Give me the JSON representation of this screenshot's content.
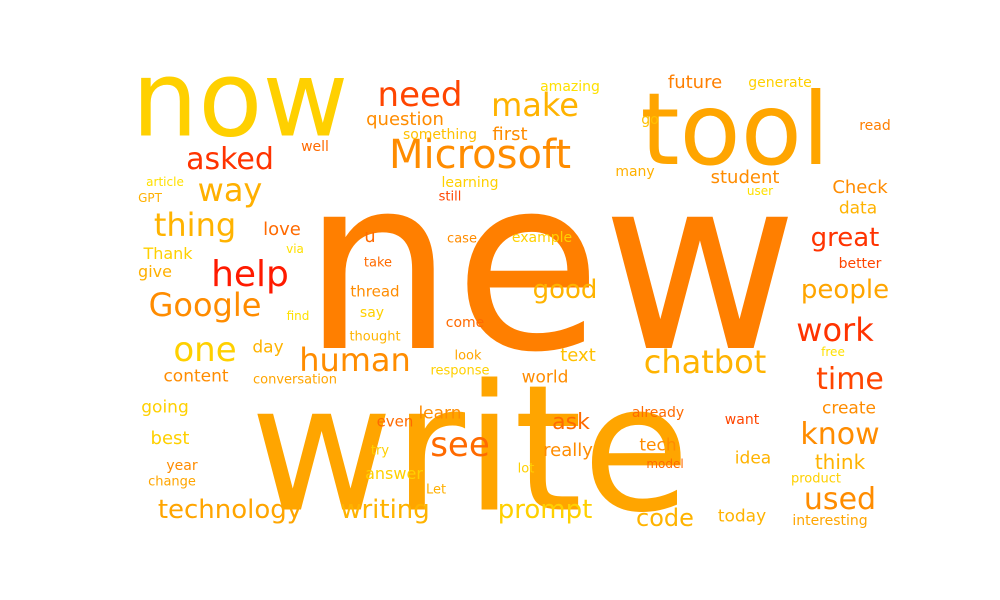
{
  "words": [
    {
      "text": "new",
      "color": "#FF7F00"
    },
    {
      "text": "write",
      "color": "#FFA500"
    },
    {
      "text": "now",
      "color": "#FFD000"
    },
    {
      "text": "tool",
      "color": "#FFA500"
    },
    {
      "text": "Microsoft",
      "color": "#FF8C00"
    },
    {
      "text": "need",
      "color": "#FF4500"
    },
    {
      "text": "make",
      "color": "#FFB300"
    },
    {
      "text": "asked",
      "color": "#FF3300"
    },
    {
      "text": "way",
      "color": "#FFB000"
    },
    {
      "text": "thing",
      "color": "#FFB300"
    },
    {
      "text": "help",
      "color": "#FF1A00"
    },
    {
      "text": "Google",
      "color": "#FF8C00"
    },
    {
      "text": "one",
      "color": "#FFD000"
    },
    {
      "text": "human",
      "color": "#FF8C00"
    },
    {
      "text": "see",
      "color": "#FF6A00"
    },
    {
      "text": "chatbot",
      "color": "#FFB300"
    },
    {
      "text": "work",
      "color": "#FF3300"
    },
    {
      "text": "time",
      "color": "#FF4500"
    },
    {
      "text": "know",
      "color": "#FF8C00"
    },
    {
      "text": "used",
      "color": "#FF8C00"
    },
    {
      "text": "technology",
      "color": "#FFA500"
    },
    {
      "text": "writing",
      "color": "#FFB300"
    },
    {
      "text": "prompt",
      "color": "#FFD000"
    },
    {
      "text": "code",
      "color": "#FFB300"
    },
    {
      "text": "people",
      "color": "#FFA500"
    },
    {
      "text": "great",
      "color": "#FF3300"
    },
    {
      "text": "good",
      "color": "#FFB300"
    },
    {
      "text": "question",
      "color": "#FF8C00"
    },
    {
      "text": "first",
      "color": "#FF8C00"
    },
    {
      "text": "future",
      "color": "#FF7F00"
    },
    {
      "text": "generate",
      "color": "#FFD000"
    },
    {
      "text": "amazing",
      "color": "#FFE000"
    },
    {
      "text": "something",
      "color": "#FFC000"
    },
    {
      "text": "go",
      "color": "#FFC000"
    },
    {
      "text": "read",
      "color": "#FF7F00"
    },
    {
      "text": "well",
      "color": "#FF6A00"
    },
    {
      "text": "article",
      "color": "#FFE000"
    },
    {
      "text": "GPT",
      "color": "#FFB000"
    },
    {
      "text": "learning",
      "color": "#FFD000"
    },
    {
      "text": "still",
      "color": "#FF4500"
    },
    {
      "text": "many",
      "color": "#FFB000"
    },
    {
      "text": "student",
      "color": "#FF8C00"
    },
    {
      "text": "user",
      "color": "#FFE000"
    },
    {
      "text": "Check",
      "color": "#FF8C00"
    },
    {
      "text": "data",
      "color": "#FFB300"
    },
    {
      "text": "love",
      "color": "#FF6A00"
    },
    {
      "text": "u",
      "color": "#FF6A00"
    },
    {
      "text": "case",
      "color": "#FF8C00"
    },
    {
      "text": "example",
      "color": "#FFD000"
    },
    {
      "text": "Thank",
      "color": "#FFD000"
    },
    {
      "text": "via",
      "color": "#FFE000"
    },
    {
      "text": "give",
      "color": "#FFB000"
    },
    {
      "text": "take",
      "color": "#FF6A00"
    },
    {
      "text": "better",
      "color": "#FF4500"
    },
    {
      "text": "thread",
      "color": "#FF8C00"
    },
    {
      "text": "say",
      "color": "#FFD000"
    },
    {
      "text": "find",
      "color": "#FFE000"
    },
    {
      "text": "thought",
      "color": "#FFB300"
    },
    {
      "text": "come",
      "color": "#FF6A00"
    },
    {
      "text": "day",
      "color": "#FFB300"
    },
    {
      "text": "look",
      "color": "#FFA500"
    },
    {
      "text": "text",
      "color": "#FFC000"
    },
    {
      "text": "free",
      "color": "#FFE000"
    },
    {
      "text": "content",
      "color": "#FF8C00"
    },
    {
      "text": "conversation",
      "color": "#FFA500"
    },
    {
      "text": "response",
      "color": "#FFD000"
    },
    {
      "text": "world",
      "color": "#FF8C00"
    },
    {
      "text": "going",
      "color": "#FFD000"
    },
    {
      "text": "learn",
      "color": "#FF8C00"
    },
    {
      "text": "already",
      "color": "#FF6A00"
    },
    {
      "text": "create",
      "color": "#FF8C00"
    },
    {
      "text": "ask",
      "color": "#FF6A00"
    },
    {
      "text": "even",
      "color": "#FF6A00"
    },
    {
      "text": "want",
      "color": "#FF4500"
    },
    {
      "text": "best",
      "color": "#FFD000"
    },
    {
      "text": "really",
      "color": "#FF8C00"
    },
    {
      "text": "tech",
      "color": "#FF8C00"
    },
    {
      "text": "idea",
      "color": "#FFB300"
    },
    {
      "text": "think",
      "color": "#FFB300"
    },
    {
      "text": "try",
      "color": "#FFD000"
    },
    {
      "text": "year",
      "color": "#FF8C00"
    },
    {
      "text": "answer",
      "color": "#FFD000"
    },
    {
      "text": "lot",
      "color": "#FFD000"
    },
    {
      "text": "model",
      "color": "#FF6A00"
    },
    {
      "text": "change",
      "color": "#FFA500"
    },
    {
      "text": "Let",
      "color": "#FFB000"
    },
    {
      "text": "product",
      "color": "#FFD000"
    },
    {
      "text": "today",
      "color": "#FFB300"
    },
    {
      "text": "interesting",
      "color": "#FFA500"
    }
  ]
}
